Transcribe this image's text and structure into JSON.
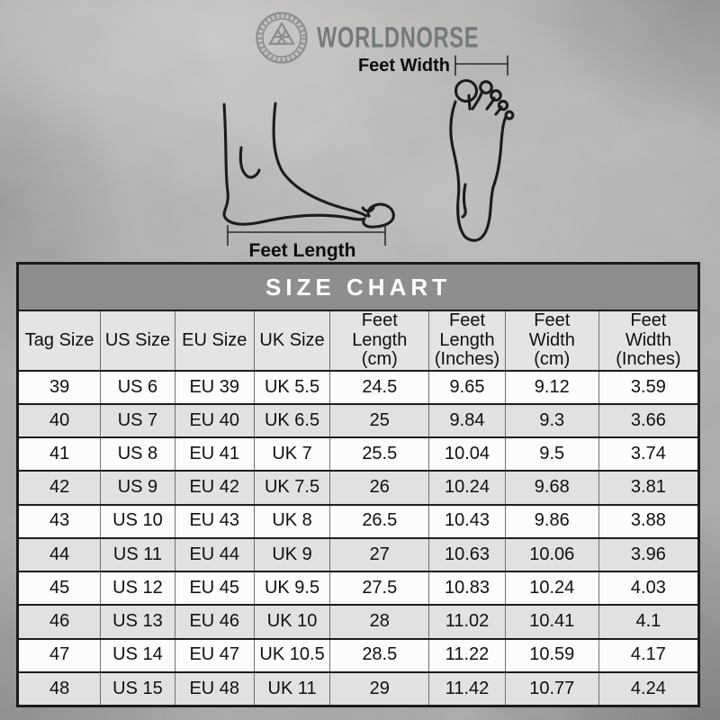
{
  "brand": {
    "name": "WORLDNORSE"
  },
  "diagram": {
    "feet_width_label": "Feet Width",
    "feet_length_label": "Feet Length"
  },
  "chart_data": {
    "type": "table",
    "title": "SIZE CHART",
    "columns": [
      {
        "key": "tag-size",
        "label": "Tag Size",
        "lines": [
          "Tag Size"
        ]
      },
      {
        "key": "us-size",
        "label": "US Size",
        "lines": [
          "US Size"
        ]
      },
      {
        "key": "eu-size",
        "label": "EU Size",
        "lines": [
          "EU Size"
        ]
      },
      {
        "key": "uk-size",
        "label": "UK Size",
        "lines": [
          "UK Size"
        ]
      },
      {
        "key": "feet-length-cm",
        "label": "Feet Length (cm)",
        "lines": [
          "Feet",
          "Length",
          "(cm)"
        ]
      },
      {
        "key": "feet-length-inches",
        "label": "Feet Length (Inches)",
        "lines": [
          "Feet",
          "Length",
          "(Inches)"
        ]
      },
      {
        "key": "feet-width-cm",
        "label": "Feet Width (cm)",
        "lines": [
          "Feet",
          "Width",
          "(cm)"
        ]
      },
      {
        "key": "feet-width-inches",
        "label": "Feet Width (Inches)",
        "lines": [
          "Feet",
          "Width",
          "(Inches)"
        ]
      }
    ],
    "rows": [
      [
        "39",
        "US 6",
        "EU 39",
        "UK 5.5",
        "24.5",
        "9.65",
        "9.12",
        "3.59"
      ],
      [
        "40",
        "US 7",
        "EU 40",
        "UK 6.5",
        "25",
        "9.84",
        "9.3",
        "3.66"
      ],
      [
        "41",
        "US 8",
        "EU 41",
        "UK 7",
        "25.5",
        "10.04",
        "9.5",
        "3.74"
      ],
      [
        "42",
        "US 9",
        "EU 42",
        "UK 7.5",
        "26",
        "10.24",
        "9.68",
        "3.81"
      ],
      [
        "43",
        "US 10",
        "EU 43",
        "UK 8",
        "26.5",
        "10.43",
        "9.86",
        "3.88"
      ],
      [
        "44",
        "US 11",
        "EU 44",
        "UK 9",
        "27",
        "10.63",
        "10.06",
        "3.96"
      ],
      [
        "45",
        "US 12",
        "EU 45",
        "UK 9.5",
        "27.5",
        "10.83",
        "10.24",
        "4.03"
      ],
      [
        "46",
        "US 13",
        "EU 46",
        "UK 10",
        "28",
        "11.02",
        "10.41",
        "4.1"
      ],
      [
        "47",
        "US 14",
        "EU 47",
        "UK 10.5",
        "28.5",
        "11.22",
        "10.59",
        "4.17"
      ],
      [
        "48",
        "US 15",
        "EU 48",
        "UK 11",
        "29",
        "11.42",
        "10.77",
        "4.24"
      ]
    ]
  },
  "colors": {
    "background": "#b3b1af",
    "title_band_bg": "#8e8e8e",
    "title_band_text": "#ffffff",
    "header_row_bg": "#e4e4e3",
    "row_bg": "#fcfcfc",
    "row_alt_bg": "#e1e1e0",
    "table_border": "#1b1b1b",
    "cell_divider": "#6f6f6f",
    "brand_text": "#757b7c",
    "ink": "#141414"
  }
}
